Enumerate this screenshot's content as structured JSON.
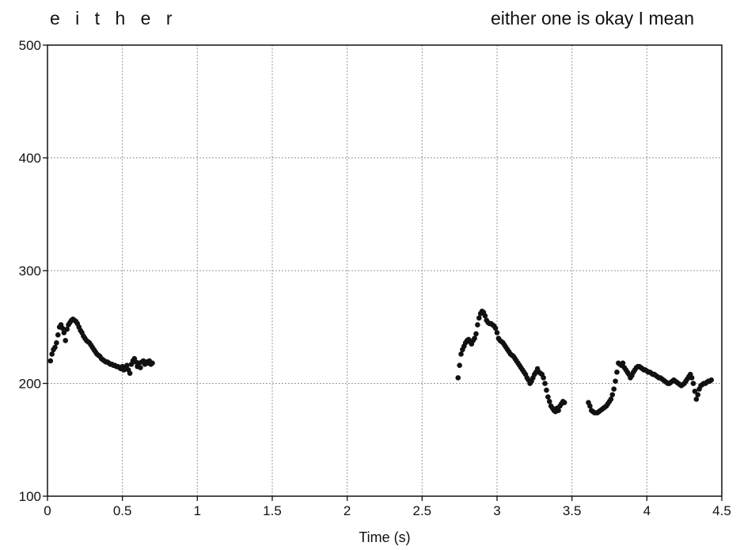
{
  "chart_data": {
    "type": "scatter",
    "title": "",
    "xlabel": "Time (s)",
    "ylabel": "",
    "xlim": [
      0,
      4.5
    ],
    "ylim": [
      100,
      500
    ],
    "xticks": [
      0,
      0.5,
      1,
      1.5,
      2,
      2.5,
      3,
      3.5,
      4,
      4.5
    ],
    "xtick_labels": [
      "0",
      "0.5",
      "1",
      "1.5",
      "2",
      "2.5",
      "3",
      "3.5",
      "4",
      "4.5"
    ],
    "yticks": [
      100,
      200,
      300,
      400,
      500
    ],
    "ytick_labels": [
      "100",
      "200",
      "300",
      "400",
      "500"
    ],
    "grid": true,
    "annotations": {
      "left": "e i t h e r",
      "right": "either one is okay I mean"
    },
    "series": [
      {
        "marker_color": "#111111",
        "x": [
          0.02,
          0.03,
          0.04,
          0.05,
          0.06,
          0.07,
          0.08,
          0.09,
          0.1,
          0.11,
          0.12,
          0.13,
          0.14,
          0.15,
          0.16,
          0.17,
          0.18,
          0.19,
          0.2,
          0.21,
          0.22,
          0.23,
          0.24,
          0.25,
          0.26,
          0.27,
          0.28,
          0.29,
          0.3,
          0.31,
          0.32,
          0.33,
          0.34,
          0.35,
          0.36,
          0.37,
          0.38,
          0.39,
          0.4,
          0.41,
          0.42,
          0.43,
          0.44,
          0.45,
          0.46,
          0.47,
          0.48,
          0.49,
          0.5,
          0.51,
          0.52,
          0.53,
          0.54,
          0.55,
          0.56,
          0.57,
          0.58,
          0.59,
          0.6,
          0.61,
          0.62,
          0.63,
          0.64,
          0.65,
          0.66,
          0.67,
          0.68,
          0.69,
          0.7,
          2.74,
          2.75,
          2.76,
          2.77,
          2.78,
          2.79,
          2.8,
          2.81,
          2.82,
          2.83,
          2.84,
          2.85,
          2.86,
          2.87,
          2.88,
          2.89,
          2.9,
          2.91,
          2.92,
          2.93,
          2.94,
          2.95,
          2.96,
          2.97,
          2.98,
          2.99,
          3.0,
          3.01,
          3.02,
          3.03,
          3.04,
          3.05,
          3.06,
          3.07,
          3.08,
          3.09,
          3.1,
          3.11,
          3.12,
          3.13,
          3.14,
          3.15,
          3.16,
          3.17,
          3.18,
          3.19,
          3.2,
          3.21,
          3.22,
          3.23,
          3.24,
          3.25,
          3.26,
          3.27,
          3.28,
          3.29,
          3.3,
          3.31,
          3.32,
          3.33,
          3.34,
          3.35,
          3.36,
          3.37,
          3.38,
          3.39,
          3.4,
          3.41,
          3.42,
          3.43,
          3.44,
          3.45,
          3.61,
          3.62,
          3.63,
          3.64,
          3.65,
          3.66,
          3.67,
          3.68,
          3.69,
          3.7,
          3.71,
          3.72,
          3.73,
          3.74,
          3.75,
          3.76,
          3.77,
          3.78,
          3.79,
          3.8,
          3.81,
          3.82,
          3.83,
          3.84,
          3.85,
          3.86,
          3.87,
          3.88,
          3.89,
          3.9,
          3.91,
          3.92,
          3.93,
          3.94,
          3.95,
          3.96,
          3.97,
          3.98,
          3.99,
          4.0,
          4.01,
          4.02,
          4.03,
          4.04,
          4.05,
          4.06,
          4.07,
          4.08,
          4.09,
          4.1,
          4.11,
          4.12,
          4.13,
          4.14,
          4.15,
          4.16,
          4.17,
          4.18,
          4.19,
          4.2,
          4.21,
          4.22,
          4.23,
          4.24,
          4.25,
          4.26,
          4.27,
          4.28,
          4.29,
          4.3,
          4.31,
          4.32,
          4.33,
          4.34,
          4.35,
          4.36,
          4.37,
          4.38,
          4.39,
          4.4,
          4.41,
          4.42,
          4.43
        ],
        "y": [
          220,
          226,
          230,
          232,
          236,
          243,
          250,
          252,
          249,
          245,
          238,
          248,
          252,
          254,
          256,
          257,
          256,
          255,
          253,
          250,
          247,
          245,
          242,
          240,
          238,
          237,
          236,
          234,
          232,
          230,
          228,
          226,
          225,
          224,
          222,
          221,
          220,
          219,
          219,
          218,
          217,
          217,
          216,
          216,
          215,
          215,
          214,
          213,
          215,
          212,
          214,
          216,
          212,
          209,
          217,
          220,
          222,
          219,
          215,
          218,
          214,
          219,
          220,
          217,
          219,
          218,
          220,
          217,
          218,
          205,
          216,
          226,
          230,
          233,
          236,
          238,
          239,
          237,
          235,
          238,
          240,
          244,
          252,
          258,
          262,
          264,
          263,
          260,
          256,
          254,
          253,
          253,
          252,
          251,
          249,
          245,
          240,
          238,
          237,
          236,
          234,
          232,
          230,
          228,
          226,
          225,
          224,
          222,
          220,
          218,
          216,
          214,
          212,
          210,
          208,
          205,
          203,
          200,
          202,
          205,
          208,
          210,
          213,
          210,
          209,
          208,
          205,
          200,
          194,
          188,
          184,
          180,
          178,
          176,
          175,
          178,
          176,
          180,
          182,
          184,
          183,
          183,
          180,
          176,
          175,
          174,
          174,
          174,
          175,
          176,
          177,
          178,
          179,
          180,
          182,
          184,
          186,
          190,
          195,
          202,
          210,
          218,
          217,
          216,
          218,
          214,
          212,
          210,
          208,
          205,
          207,
          210,
          212,
          214,
          215,
          215,
          214,
          213,
          212,
          212,
          211,
          210,
          210,
          209,
          208,
          208,
          207,
          206,
          205,
          205,
          204,
          203,
          202,
          201,
          200,
          200,
          201,
          202,
          203,
          202,
          201,
          200,
          199,
          198,
          199,
          200,
          202,
          204,
          206,
          208,
          205,
          200,
          193,
          186,
          190,
          195,
          198,
          199,
          200,
          200,
          201,
          202,
          202,
          203
        ]
      }
    ]
  }
}
